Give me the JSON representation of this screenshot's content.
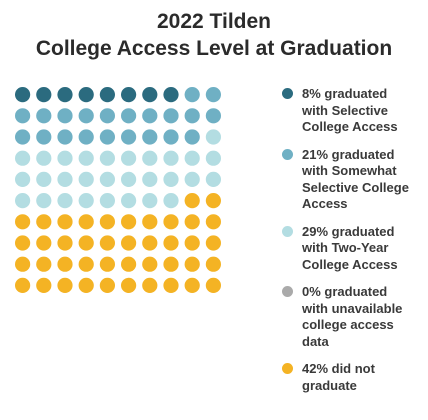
{
  "title": {
    "line1": "2022 Tilden",
    "line2": "College Access Level at Graduation"
  },
  "chart_data": {
    "type": "waffle",
    "total_cells": 100,
    "grid": "10x10",
    "series": [
      {
        "name": "Selective College Access",
        "percent": 8,
        "color": "#2b6b7f"
      },
      {
        "name": "Somewhat Selective College Access",
        "percent": 21,
        "color": "#6fb0c4"
      },
      {
        "name": "Two-Year College Access",
        "percent": 29,
        "color": "#b3dde2"
      },
      {
        "name": "unavailable college access data",
        "percent": 0,
        "color": "#aaaaaa"
      },
      {
        "name": "did not graduate",
        "percent": 42,
        "color": "#f4b324"
      }
    ]
  },
  "legend": [
    {
      "lines": [
        "8% graduated",
        "with Selective",
        "College Access"
      ],
      "color": "#2b6b7f"
    },
    {
      "lines": [
        "21% graduated",
        "with Somewhat",
        "Selective College",
        "Access"
      ],
      "color": "#6fb0c4"
    },
    {
      "lines": [
        "29% graduated",
        "with Two-Year",
        "College Access"
      ],
      "color": "#b3dde2"
    },
    {
      "lines": [
        "0% graduated",
        "with unavailable",
        "college access",
        "data"
      ],
      "color": "#aaaaaa"
    },
    {
      "lines": [
        "42% did not",
        "graduate"
      ],
      "color": "#f4b324"
    }
  ]
}
